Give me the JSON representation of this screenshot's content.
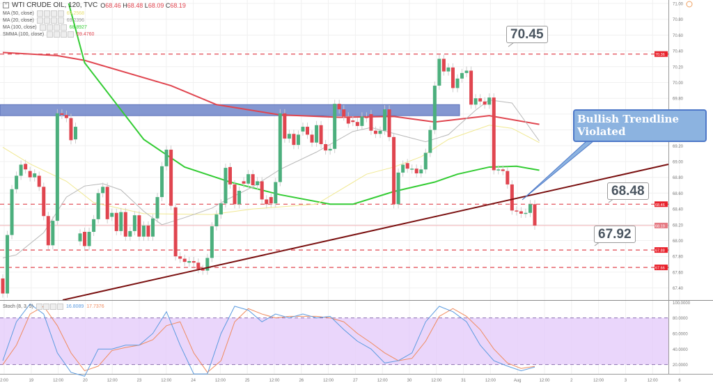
{
  "header": {
    "symbol": "WTI CRUDE OIL, 120, TVC",
    "open_label": "O",
    "open": "68.46",
    "high_label": "H",
    "high": "68.48",
    "low_label": "L",
    "low": "68.09",
    "close_label": "C",
    "close": "68.19"
  },
  "indicators": [
    {
      "label": "MA (50, close)",
      "value": "69.2568",
      "color": "#e8e070"
    },
    {
      "label": "MA (20, close)",
      "value": "69.2396",
      "color": "#999999"
    },
    {
      "label": "MA (100, close)",
      "value": "68.8927",
      "color": "#33cc33"
    },
    {
      "label": "SMMA (100, close)",
      "value": "69.4760",
      "color": "#e0454f"
    }
  ],
  "stoch": {
    "label": "Stoch (8, 3, 5)",
    "k_value": "16.8089",
    "d_value": "17.7376",
    "k_color": "#5b9be0",
    "d_color": "#f08a5d",
    "band": [
      20,
      80
    ],
    "axis_labels": [
      "100.0000",
      "80.0000",
      "60.0000",
      "40.0000",
      "20.0000"
    ]
  },
  "annotations": {
    "high_note": "70.45",
    "mid_note": "68.48",
    "low_note": "67.92",
    "callout": "Bullish Trendline Violated"
  },
  "colors": {
    "up": "#4caf7d",
    "down": "#e0454f",
    "zone": "#6f85c9",
    "trendline": "#7a1010",
    "level": "#e0454f"
  },
  "chart_data": {
    "type": "candlestick",
    "ylim": [
      67.3,
      71.0
    ],
    "price_axis_labels": [
      "71.00",
      "70.80",
      "70.60",
      "70.40",
      "70.20",
      "70.00",
      "69.80",
      "69.60",
      "69.40",
      "69.20",
      "69.00",
      "68.80",
      "68.60",
      "68.40",
      "68.20",
      "68.00",
      "67.80",
      "67.60",
      "67.40"
    ],
    "level_badges": [
      "70.36",
      "68.46",
      "68.19",
      "67.88",
      "67.66"
    ],
    "dashed_levels": [
      70.36,
      68.46,
      67.88,
      67.66
    ],
    "current_price": 68.19,
    "resistance_zone": [
      69.58,
      69.72
    ],
    "time_labels": [
      "2:00",
      "19",
      "12:00",
      "20",
      "12:00",
      "23",
      "12:00",
      "24",
      "12:00",
      "25",
      "12:00",
      "26",
      "12:00",
      "27",
      "12:00",
      "30",
      "12:00",
      "31",
      "12:00",
      "Aug",
      "12:00",
      "2",
      "12:00",
      "3",
      "12:00",
      "6"
    ],
    "candles_oc": [
      [
        67.52,
        67.33
      ],
      [
        67.33,
        68.07
      ],
      [
        68.07,
        68.65
      ],
      [
        68.65,
        68.82
      ],
      [
        68.82,
        68.96
      ],
      [
        68.97,
        68.9
      ],
      [
        68.88,
        68.8
      ],
      [
        68.8,
        68.85
      ],
      [
        68.82,
        68.68
      ],
      [
        68.68,
        68.31
      ],
      [
        68.31,
        67.94
      ],
      [
        67.94,
        68.25
      ],
      [
        68.25,
        69.61
      ],
      [
        69.61,
        69.59
      ],
      [
        69.59,
        69.55
      ],
      [
        69.55,
        69.27
      ],
      [
        69.28,
        69.44
      ],
      [
        67.99,
        68.09
      ],
      [
        68.11,
        67.93
      ],
      [
        67.93,
        68.11
      ],
      [
        68.11,
        68.27
      ],
      [
        68.27,
        68.6
      ],
      [
        68.6,
        68.68
      ],
      [
        68.68,
        68.27
      ],
      [
        68.3,
        68.35
      ],
      [
        68.35,
        68.12
      ],
      [
        68.12,
        68.36
      ],
      [
        68.36,
        68.05
      ],
      [
        68.05,
        68.12
      ],
      [
        68.12,
        68.32
      ],
      [
        68.32,
        68.05
      ],
      [
        68.05,
        68.19
      ],
      [
        68.19,
        68.05
      ],
      [
        68.05,
        68.28
      ],
      [
        68.28,
        68.55
      ],
      [
        68.55,
        68.94
      ],
      [
        68.94,
        69.15
      ],
      [
        69.15,
        68.44
      ],
      [
        68.42,
        67.8
      ],
      [
        67.8,
        67.77
      ],
      [
        67.77,
        67.73
      ],
      [
        67.72,
        67.74
      ],
      [
        67.74,
        67.72
      ],
      [
        67.72,
        67.64
      ],
      [
        67.64,
        67.62
      ],
      [
        67.62,
        67.78
      ],
      [
        67.78,
        68.18
      ],
      [
        68.18,
        68.33
      ],
      [
        68.33,
        68.47
      ],
      [
        68.47,
        68.92
      ],
      [
        68.93,
        68.71
      ],
      [
        68.71,
        68.46
      ],
      [
        68.46,
        68.63
      ],
      [
        68.75,
        68.72
      ],
      [
        68.72,
        68.84
      ],
      [
        68.84,
        68.7
      ],
      [
        68.7,
        68.75
      ],
      [
        68.75,
        68.52
      ],
      [
        68.52,
        68.46
      ],
      [
        68.55,
        68.47
      ],
      [
        68.47,
        68.74
      ],
      [
        68.74,
        69.61
      ],
      [
        69.61,
        69.29
      ],
      [
        69.29,
        69.35
      ],
      [
        69.35,
        69.21
      ],
      [
        69.21,
        69.34
      ],
      [
        69.38,
        69.44
      ],
      [
        69.44,
        69.34
      ],
      [
        69.34,
        69.24
      ],
      [
        69.24,
        69.46
      ],
      [
        69.46,
        69.22
      ],
      [
        69.22,
        69.14
      ],
      [
        69.14,
        69.16
      ],
      [
        69.16,
        69.73
      ],
      [
        69.73,
        69.66
      ],
      [
        69.66,
        69.57
      ],
      [
        69.57,
        69.48
      ],
      [
        69.52,
        69.5
      ],
      [
        69.5,
        69.45
      ],
      [
        69.45,
        69.57
      ],
      [
        69.57,
        69.55
      ],
      [
        69.6,
        69.39
      ],
      [
        69.39,
        69.35
      ],
      [
        69.35,
        69.39
      ],
      [
        69.39,
        69.66
      ],
      [
        69.66,
        69.31
      ],
      [
        69.31,
        68.46
      ],
      [
        68.46,
        68.86
      ],
      [
        68.86,
        68.96
      ],
      [
        68.98,
        68.91
      ],
      [
        68.9,
        68.91
      ],
      [
        68.91,
        68.85
      ],
      [
        68.85,
        68.9
      ],
      [
        68.9,
        69.11
      ],
      [
        69.11,
        69.4
      ],
      [
        69.4,
        69.96
      ],
      [
        69.96,
        70.3
      ],
      [
        70.3,
        70.14
      ],
      [
        70.14,
        70.19
      ],
      [
        70.19,
        69.93
      ],
      [
        69.93,
        70.05
      ],
      [
        70.05,
        70.12
      ],
      [
        70.12,
        70.15
      ],
      [
        70.15,
        69.72
      ],
      [
        69.72,
        69.8
      ],
      [
        69.8,
        69.76
      ],
      [
        69.76,
        69.72
      ],
      [
        69.72,
        69.81
      ],
      [
        69.81,
        68.89
      ],
      [
        68.89,
        68.9
      ],
      [
        68.9,
        68.88
      ],
      [
        68.88,
        68.71
      ],
      [
        68.71,
        68.38
      ],
      [
        68.38,
        68.37
      ],
      [
        68.37,
        68.34
      ],
      [
        68.34,
        68.35
      ],
      [
        68.35,
        68.46
      ],
      [
        68.46,
        68.19
      ]
    ],
    "ma_lines": [
      {
        "name": "SMMA (100, close)",
        "color": "#e0454f",
        "points": [
          [
            0,
            70.38
          ],
          [
            12,
            70.34
          ],
          [
            18,
            70.28
          ],
          [
            37,
            69.96
          ],
          [
            47,
            69.72
          ],
          [
            61,
            69.59
          ],
          [
            74,
            69.56
          ],
          [
            86,
            69.57
          ],
          [
            95,
            69.5
          ],
          [
            107,
            69.58
          ],
          [
            118,
            69.47
          ]
        ]
      },
      {
        "name": "MA (100, close)",
        "color": "#33cc33",
        "points": [
          [
            14.5,
            71.0
          ],
          [
            18,
            70.25
          ],
          [
            31,
            69.28
          ],
          [
            40,
            68.93
          ],
          [
            50,
            68.74
          ],
          [
            61,
            68.58
          ],
          [
            72,
            68.46
          ],
          [
            77,
            68.46
          ],
          [
            86,
            68.62
          ],
          [
            95,
            68.74
          ],
          [
            100,
            68.84
          ],
          [
            107,
            68.93
          ],
          [
            113,
            68.94
          ],
          [
            118,
            68.89
          ]
        ]
      },
      {
        "name": "MA (50, close)",
        "color": "#f0e890",
        "points": [
          [
            0,
            69.18
          ],
          [
            6,
            68.97
          ],
          [
            14,
            68.75
          ],
          [
            20,
            68.48
          ],
          [
            31,
            68.34
          ],
          [
            46,
            68.33
          ],
          [
            55,
            68.4
          ],
          [
            69,
            68.46
          ],
          [
            80,
            68.84
          ],
          [
            86,
            68.93
          ],
          [
            92,
            69.06
          ],
          [
            98,
            69.28
          ],
          [
            107,
            69.46
          ],
          [
            112,
            69.42
          ],
          [
            118,
            69.24
          ]
        ]
      },
      {
        "name": "MA (20, close)",
        "color": "#b8b8b8",
        "points": [
          [
            0,
            67.78
          ],
          [
            3,
            67.82
          ],
          [
            9,
            68.1
          ],
          [
            14,
            68.55
          ],
          [
            18,
            68.69
          ],
          [
            22,
            68.72
          ],
          [
            26,
            68.64
          ],
          [
            31,
            68.37
          ],
          [
            35,
            68.2
          ],
          [
            40,
            68.29
          ],
          [
            46,
            68.41
          ],
          [
            49,
            68.51
          ],
          [
            55,
            68.68
          ],
          [
            61,
            68.9
          ],
          [
            69,
            69.12
          ],
          [
            77,
            69.38
          ],
          [
            81,
            69.43
          ],
          [
            87,
            69.34
          ],
          [
            93,
            69.25
          ],
          [
            98,
            69.34
          ],
          [
            104,
            69.65
          ],
          [
            107,
            69.78
          ],
          [
            112,
            69.74
          ],
          [
            118,
            69.26
          ]
        ]
      }
    ],
    "stoch_k": [
      25,
      75,
      98,
      85,
      35,
      10,
      5,
      40,
      40,
      45,
      45,
      60,
      88,
      45,
      8,
      8,
      60,
      95,
      90,
      75,
      85,
      80,
      85,
      80,
      82,
      65,
      50,
      40,
      22,
      25,
      35,
      75,
      95,
      88,
      75,
      45,
      25,
      18,
      12,
      16.8
    ],
    "stoch_d": [
      20,
      45,
      85,
      95,
      70,
      35,
      12,
      18,
      38,
      42,
      45,
      52,
      70,
      75,
      35,
      10,
      25,
      75,
      92,
      85,
      80,
      82,
      82,
      82,
      80,
      75,
      60,
      48,
      35,
      25,
      28,
      50,
      82,
      92,
      82,
      65,
      40,
      22,
      15,
      17.7
    ]
  }
}
